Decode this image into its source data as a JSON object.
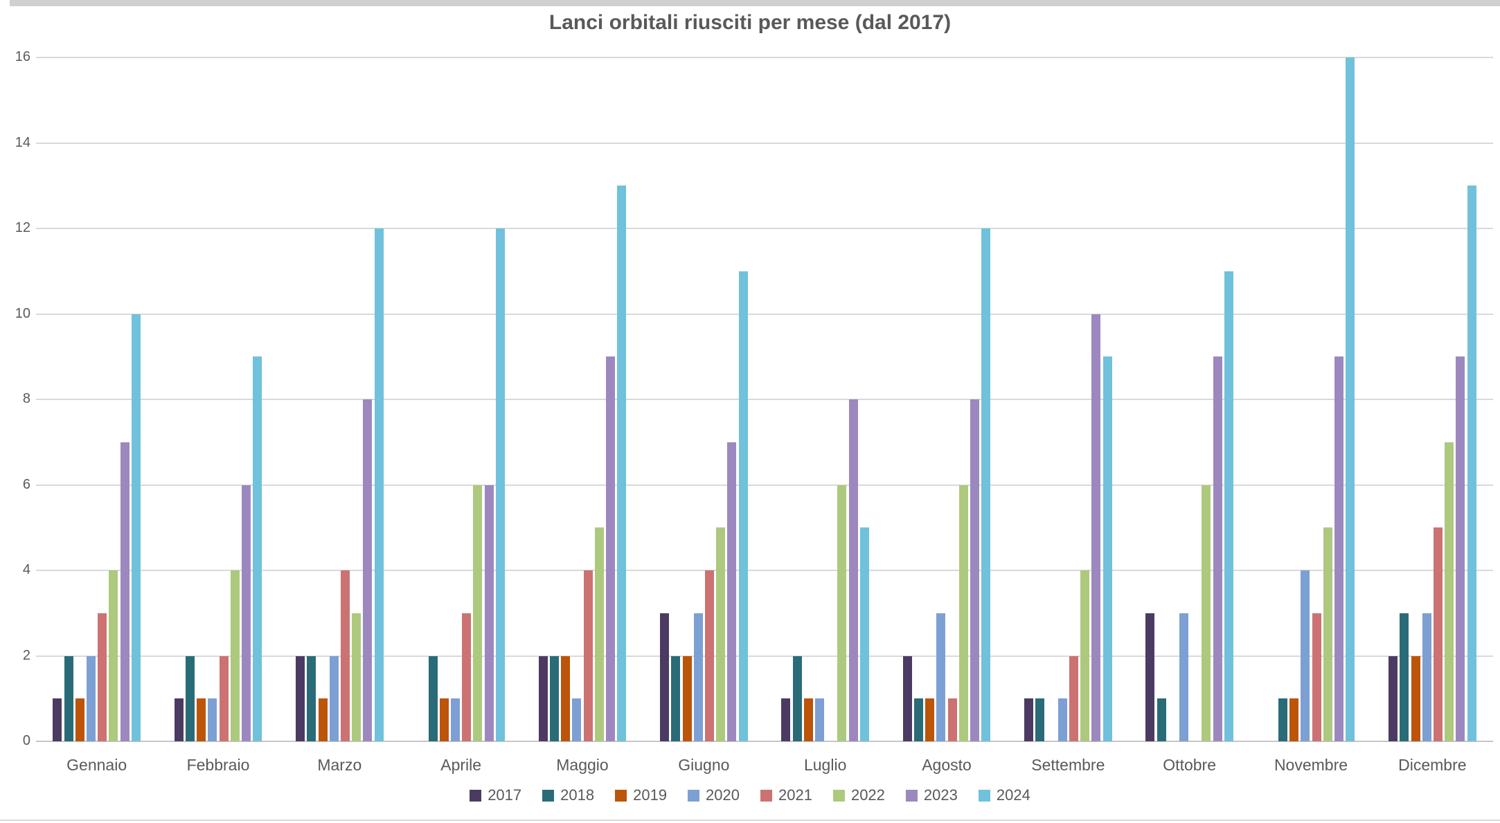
{
  "title": "Lanci orbitali riusciti per mese (dal 2017)",
  "chart_data": {
    "type": "bar",
    "title": "Lanci orbitali riusciti per mese (dal 2017)",
    "categories": [
      "Gennaio",
      "Febbraio",
      "Marzo",
      "Aprile",
      "Maggio",
      "Giugno",
      "Luglio",
      "Agosto",
      "Settembre",
      "Ottobre",
      "Novembre",
      "Dicembre"
    ],
    "series": [
      {
        "name": "2017",
        "color": "#4B3B62",
        "values": [
          1,
          1,
          2,
          0,
          2,
          3,
          1,
          2,
          1,
          3,
          0,
          2
        ]
      },
      {
        "name": "2018",
        "color": "#2A6B78",
        "values": [
          2,
          2,
          2,
          2,
          2,
          2,
          2,
          1,
          1,
          1,
          1,
          3
        ]
      },
      {
        "name": "2019",
        "color": "#BC5409",
        "values": [
          1,
          1,
          1,
          1,
          2,
          2,
          1,
          1,
          0,
          0,
          1,
          2
        ]
      },
      {
        "name": "2020",
        "color": "#7CA0D4",
        "values": [
          2,
          1,
          2,
          1,
          1,
          3,
          1,
          3,
          1,
          3,
          4,
          3
        ]
      },
      {
        "name": "2021",
        "color": "#CC7272",
        "values": [
          3,
          2,
          4,
          3,
          4,
          4,
          0,
          1,
          2,
          0,
          3,
          5
        ]
      },
      {
        "name": "2022",
        "color": "#ADC97E",
        "values": [
          4,
          4,
          3,
          6,
          5,
          5,
          6,
          6,
          4,
          6,
          5,
          7
        ]
      },
      {
        "name": "2023",
        "color": "#9C88BF",
        "values": [
          7,
          6,
          8,
          6,
          9,
          7,
          8,
          8,
          10,
          9,
          9,
          9
        ]
      },
      {
        "name": "2024",
        "color": "#70C1DB",
        "values": [
          10,
          9,
          12,
          12,
          13,
          11,
          5,
          12,
          9,
          11,
          16,
          13
        ]
      }
    ],
    "xlabel": "",
    "ylabel": "",
    "ylim": [
      0,
      16
    ],
    "yticks": [
      0,
      2,
      4,
      6,
      8,
      10,
      12,
      14,
      16
    ],
    "grid": true,
    "legend_position": "bottom",
    "axis_text_color": "#595959",
    "gridline_color": "#d9d9d9"
  }
}
